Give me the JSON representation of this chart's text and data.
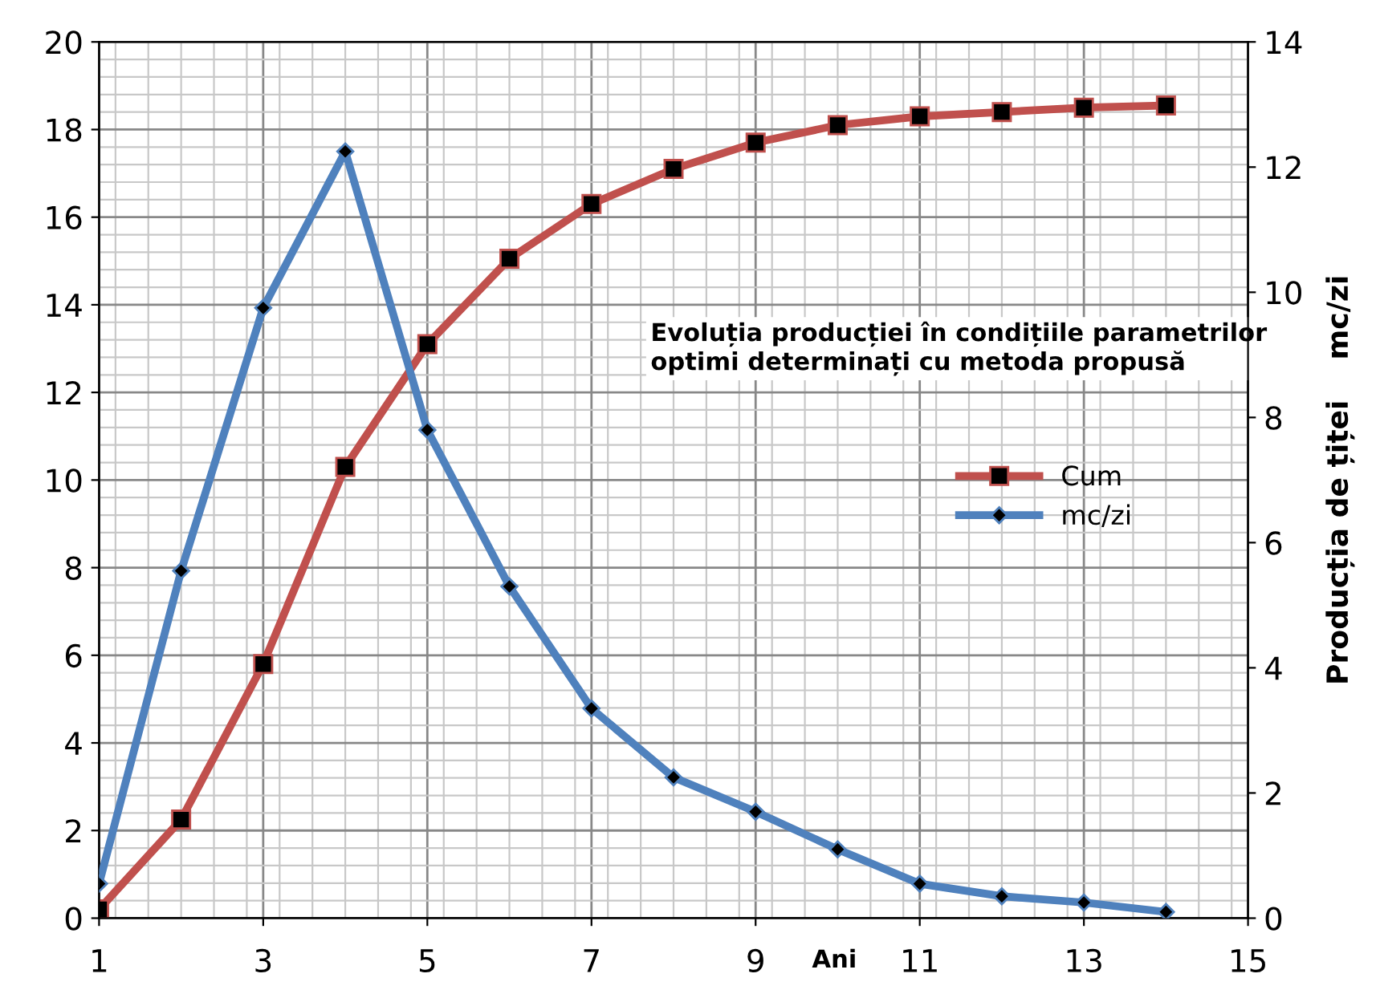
{
  "chart_data": {
    "type": "line",
    "xlabel": "Ani",
    "y2label": "Producția de țiței    mc/zi",
    "annotations": [
      "Evoluția producției în condițiile parametrilor\noptimi determinați cu metoda propusă"
    ],
    "x": [
      1,
      2,
      3,
      4,
      5,
      6,
      7,
      8,
      9,
      10,
      11,
      12,
      13,
      14
    ],
    "series": [
      {
        "name": "Cum",
        "color": "#c0504d",
        "marker": "square",
        "values": [
          0.2,
          2.25,
          5.8,
          10.3,
          13.1,
          15.05,
          16.3,
          17.1,
          17.7,
          18.1,
          18.3,
          18.4,
          18.5,
          18.55
        ]
      },
      {
        "name": "mc/zi",
        "color": "#4f81bd",
        "marker": "diamond",
        "axis": "y2",
        "values": [
          0.55,
          5.55,
          9.75,
          12.25,
          7.8,
          5.3,
          3.35,
          2.25,
          1.7,
          1.1,
          0.55,
          0.35,
          0.25,
          0.1
        ]
      }
    ],
    "xlim": [
      1,
      15
    ],
    "xticks": [
      1,
      3,
      5,
      7,
      9,
      11,
      13,
      15
    ],
    "ylim": [
      0,
      20
    ],
    "yticks": [
      0,
      2,
      4,
      6,
      8,
      10,
      12,
      14,
      16,
      18,
      20
    ],
    "y2lim": [
      0,
      14
    ],
    "y2ticks": [
      0,
      2,
      4,
      6,
      8,
      10,
      12,
      14
    ],
    "grid": true,
    "legend": "right",
    "line_style": "solid"
  }
}
